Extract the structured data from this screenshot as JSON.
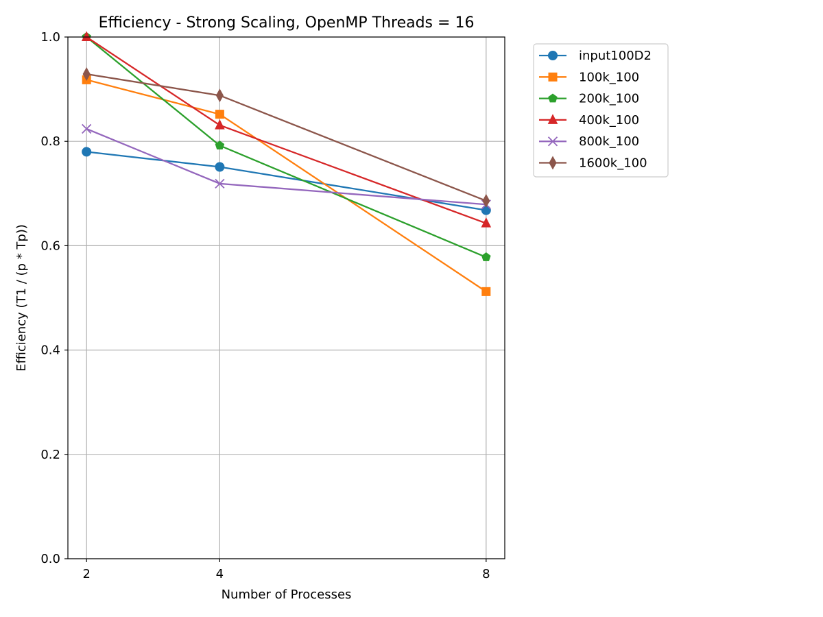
{
  "chart_data": {
    "type": "line",
    "title": "Efficiency - Strong Scaling, OpenMP Threads = 16",
    "xlabel": "Number of Processes",
    "ylabel": "Efficiency (T1 / (p * Tp))",
    "x": [
      2,
      4,
      8
    ],
    "x_tick_labels": [
      "2",
      "4",
      "8"
    ],
    "xlim": [
      1.72,
      8.28
    ],
    "ylim": [
      0.0,
      1.0
    ],
    "y_ticks": [
      0.0,
      0.2,
      0.4,
      0.6,
      0.8,
      1.0
    ],
    "y_tick_labels": [
      "0.0",
      "0.2",
      "0.4",
      "0.6",
      "0.8",
      "1.0"
    ],
    "grid": true,
    "legend_position": "outside-upper-right",
    "series": [
      {
        "name": "input100D2",
        "color": "#1f77b4",
        "marker": "circle",
        "values": [
          0.78,
          0.751,
          0.668
        ]
      },
      {
        "name": "100k_100",
        "color": "#ff7f0e",
        "marker": "square",
        "values": [
          0.918,
          0.852,
          0.512
        ]
      },
      {
        "name": "200k_100",
        "color": "#2ca02c",
        "marker": "pentagon",
        "values": [
          1.0,
          0.792,
          0.578
        ]
      },
      {
        "name": "400k_100",
        "color": "#d62728",
        "marker": "triangle-up",
        "values": [
          1.0,
          0.831,
          0.643
        ]
      },
      {
        "name": "800k_100",
        "color": "#9467bd",
        "marker": "x",
        "values": [
          0.824,
          0.719,
          0.679
        ]
      },
      {
        "name": "1600k_100",
        "color": "#8c564b",
        "marker": "thin-diamond",
        "values": [
          0.929,
          0.888,
          0.686
        ]
      }
    ]
  }
}
